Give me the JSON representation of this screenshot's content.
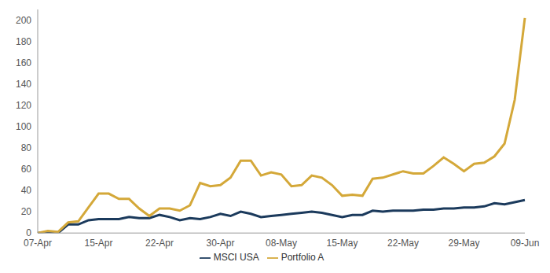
{
  "chart_data": {
    "type": "line",
    "categories": [
      "07-Apr",
      null,
      null,
      null,
      null,
      null,
      "15-Apr",
      null,
      null,
      null,
      null,
      null,
      "22-Apr",
      null,
      null,
      null,
      null,
      null,
      "30-Apr",
      null,
      null,
      null,
      null,
      null,
      "08-May",
      null,
      null,
      null,
      null,
      null,
      "15-May",
      null,
      null,
      null,
      null,
      null,
      "22-May",
      null,
      null,
      null,
      null,
      null,
      "29-May",
      null,
      null,
      null,
      null,
      null,
      "09-Jun"
    ],
    "series": [
      {
        "name": "MSCI USA",
        "color": "#1b3a5c",
        "values": [
          0,
          1,
          0,
          8,
          8,
          12,
          13,
          13,
          13,
          15,
          14,
          14,
          17,
          15,
          12,
          14,
          13,
          15,
          18,
          16,
          20,
          18,
          15,
          16,
          17,
          18,
          19,
          20,
          19,
          17,
          15,
          17,
          17,
          21,
          20,
          21,
          21,
          21,
          22,
          22,
          23,
          23,
          24,
          24,
          25,
          28,
          27,
          29,
          31
        ]
      },
      {
        "name": "Portfolio A",
        "color": "#d4a839",
        "values": [
          0,
          2,
          1,
          10,
          11,
          24,
          37,
          37,
          32,
          32,
          23,
          16,
          23,
          23,
          21,
          26,
          47,
          44,
          45,
          52,
          68,
          68,
          54,
          57,
          55,
          44,
          45,
          54,
          52,
          45,
          35,
          36,
          35,
          51,
          52,
          55,
          58,
          56,
          56,
          63,
          71,
          65,
          58,
          65,
          66,
          72,
          84,
          125,
          202
        ]
      }
    ],
    "ylim": [
      0,
      210
    ],
    "yticks": [
      0,
      20,
      40,
      60,
      80,
      100,
      120,
      140,
      160,
      180,
      200
    ],
    "grid": false,
    "legend": "bottom"
  }
}
